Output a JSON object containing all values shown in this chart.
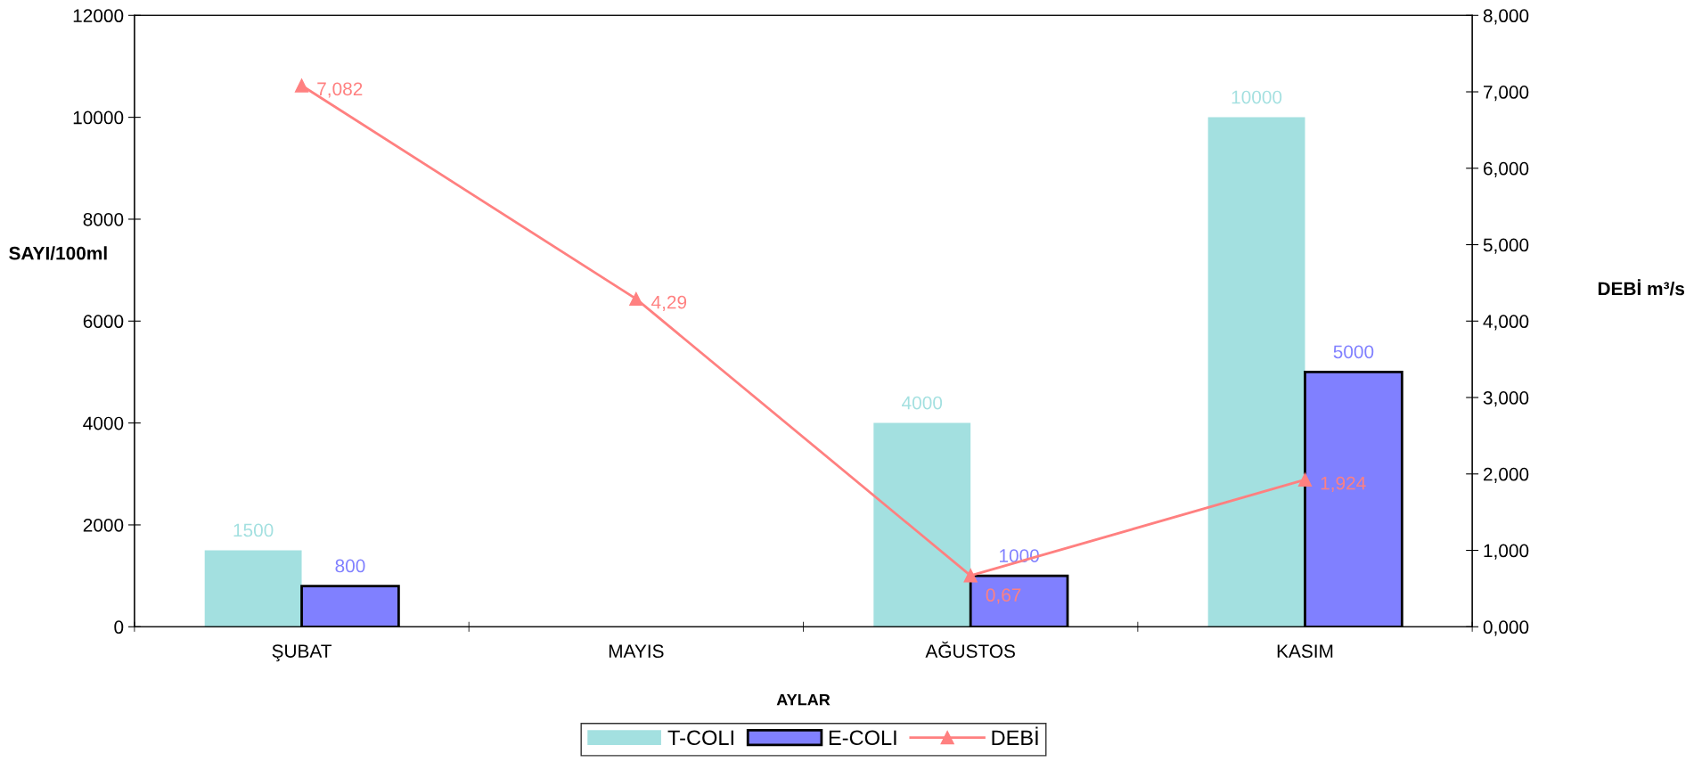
{
  "chart_data": {
    "type": "bar",
    "xlabel": "AYLAR",
    "ylabel": "SAYI/100ml",
    "y2label": "DEBİ m³/s",
    "categories": [
      "ŞUBAT",
      "MAYIS",
      "AĞUSTOS",
      "KASIM"
    ],
    "series": [
      {
        "name": "T-COLI",
        "color": "#a3e0e0",
        "values": [
          1500,
          null,
          4000,
          10000
        ]
      },
      {
        "name": "E-COLI",
        "color": "#8080ff",
        "values": [
          800,
          null,
          1000,
          5000
        ]
      },
      {
        "name": "DEBİ",
        "type": "line",
        "axis": "y2",
        "color": "#ff8080",
        "marker": "triangle",
        "values": [
          7.082,
          4.29,
          0.67,
          1.924
        ],
        "value_labels": [
          "7,082",
          "4,29",
          "0,67",
          "1,924"
        ]
      }
    ],
    "data_labels": true,
    "ylim": [
      0,
      12000
    ],
    "yticks": [
      0,
      2000,
      4000,
      6000,
      8000,
      10000,
      12000
    ],
    "y2lim": [
      0,
      8
    ],
    "y2ticks": [
      {
        "value": 0,
        "label": "0,000"
      },
      {
        "value": 1,
        "label": "1,000"
      },
      {
        "value": 2,
        "label": "2,000"
      },
      {
        "value": 3,
        "label": "3,000"
      },
      {
        "value": 4,
        "label": "4,000"
      },
      {
        "value": 5,
        "label": "5,000"
      },
      {
        "value": 6,
        "label": "6,000"
      },
      {
        "value": 7,
        "label": "7,000"
      },
      {
        "value": 8,
        "label": "8,000"
      }
    ],
    "grid": false,
    "legend": "bottom"
  }
}
